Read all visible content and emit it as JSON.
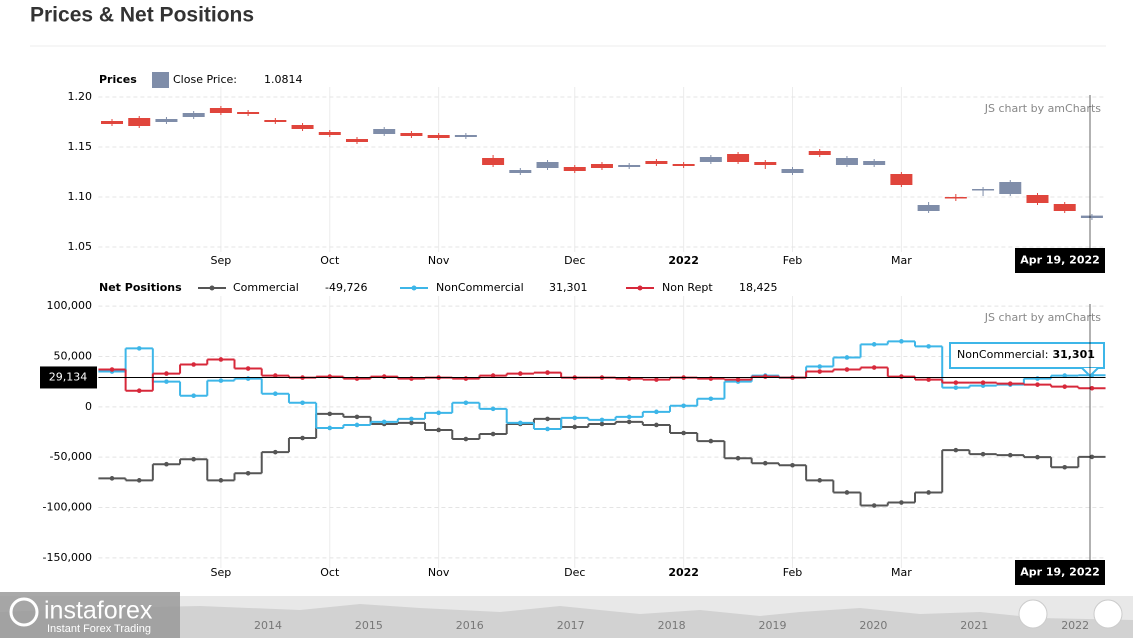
{
  "title": "Prices & Net Positions",
  "chart_data": [
    {
      "type": "candlestick",
      "title": "Prices",
      "series_name": "Close Price:",
      "cursor_value_label": "1.0814",
      "color_up": "#7f8da9",
      "color_down": "#e0453c",
      "categories": [
        null,
        null,
        null,
        null,
        "Sep",
        null,
        null,
        null,
        "Oct",
        null,
        null,
        null,
        "Nov",
        null,
        null,
        null,
        null,
        "Dec",
        null,
        null,
        null,
        "2022",
        null,
        null,
        null,
        "Feb",
        null,
        null,
        null,
        "Mar",
        null,
        null,
        null,
        null,
        null,
        null,
        null
      ],
      "open": [
        1.176,
        1.179,
        1.175,
        1.18,
        1.189,
        1.185,
        1.177,
        1.172,
        1.165,
        1.158,
        1.163,
        1.164,
        1.162,
        1.16,
        1.139,
        1.124,
        1.129,
        1.13,
        1.133,
        1.13,
        1.136,
        1.133,
        1.135,
        1.143,
        1.135,
        1.124,
        1.146,
        1.132,
        1.132,
        1.123,
        1.086,
        1.1,
        1.107,
        1.103,
        1.102,
        1.093,
        1.079
      ],
      "high": [
        1.178,
        1.181,
        1.18,
        1.186,
        1.191,
        1.187,
        1.179,
        1.174,
        1.167,
        1.16,
        1.17,
        1.166,
        1.164,
        1.164,
        1.142,
        1.129,
        1.137,
        1.132,
        1.135,
        1.134,
        1.138,
        1.135,
        1.142,
        1.145,
        1.137,
        1.13,
        1.148,
        1.141,
        1.138,
        1.125,
        1.095,
        1.103,
        1.11,
        1.117,
        1.104,
        1.095,
        1.083
      ],
      "low": [
        1.171,
        1.169,
        1.173,
        1.178,
        1.182,
        1.181,
        1.173,
        1.166,
        1.16,
        1.153,
        1.161,
        1.159,
        1.157,
        1.158,
        1.13,
        1.122,
        1.127,
        1.124,
        1.127,
        1.128,
        1.131,
        1.129,
        1.133,
        1.133,
        1.128,
        1.122,
        1.14,
        1.13,
        1.13,
        1.11,
        1.084,
        1.096,
        1.101,
        1.101,
        1.092,
        1.084,
        1.077
      ],
      "close": [
        1.173,
        1.171,
        1.178,
        1.184,
        1.184,
        1.183,
        1.175,
        1.168,
        1.162,
        1.155,
        1.168,
        1.161,
        1.159,
        1.162,
        1.132,
        1.127,
        1.135,
        1.126,
        1.129,
        1.132,
        1.133,
        1.131,
        1.14,
        1.135,
        1.132,
        1.128,
        1.142,
        1.139,
        1.136,
        1.112,
        1.092,
        1.099,
        1.108,
        1.115,
        1.094,
        1.086,
        1.0814
      ],
      "ylim": [
        1.045,
        1.21
      ],
      "yticks": [
        1.05,
        {
          "value": 1.1,
          "label": "1.10"
        },
        1.15,
        {
          "value": 1.2,
          "label": "1.20"
        }
      ],
      "grid": true,
      "credit": "JS chart by amCharts",
      "cursor_date": "Apr 19, 2022"
    },
    {
      "type": "step",
      "title": "Net Positions",
      "categories": [
        null,
        null,
        null,
        null,
        "Sep",
        null,
        null,
        null,
        "Oct",
        null,
        null,
        null,
        "Nov",
        null,
        null,
        null,
        null,
        "Dec",
        null,
        null,
        null,
        "2022",
        null,
        null,
        null,
        "Feb",
        null,
        null,
        null,
        "Mar",
        null,
        null,
        null,
        null,
        null,
        null,
        null
      ],
      "series": [
        {
          "name": "Commercial",
          "color": "#555555",
          "cursor_value_label": "-49,726",
          "values": [
            -71000,
            -73000,
            -57000,
            -52000,
            -73000,
            -66000,
            -45000,
            -31000,
            -7000,
            -10000,
            -17000,
            -16000,
            -23000,
            -32000,
            -27000,
            -17000,
            -12000,
            -20000,
            -17000,
            -15000,
            -18000,
            -26000,
            -34000,
            -51000,
            -56000,
            -58000,
            -73000,
            -85000,
            -98000,
            -95000,
            -85000,
            -43000,
            -47000,
            -48000,
            -50000,
            -60000,
            -49726
          ]
        },
        {
          "name": "NonCommercial",
          "color": "#3db6e8",
          "cursor_value_label": "31,301",
          "values": [
            35000,
            58000,
            25000,
            11000,
            26000,
            28000,
            13000,
            4000,
            -21000,
            -18000,
            -15000,
            -12000,
            -6000,
            4000,
            -2000,
            -16000,
            -22000,
            -11000,
            -13000,
            -10000,
            -5000,
            1000,
            8000,
            25000,
            31000,
            29000,
            40000,
            49000,
            62000,
            65000,
            60000,
            19000,
            21000,
            22000,
            28000,
            31000,
            31301
          ]
        },
        {
          "name": "Non Rept",
          "color": "#d7283a",
          "cursor_value_label": "18,425",
          "values": [
            37000,
            16000,
            33000,
            42000,
            47000,
            38000,
            31000,
            29000,
            30000,
            28000,
            30000,
            28000,
            29000,
            28000,
            31000,
            33000,
            34000,
            29000,
            29000,
            28000,
            27000,
            29000,
            28000,
            27000,
            30000,
            29000,
            35000,
            37000,
            39000,
            30000,
            27000,
            24000,
            24000,
            23000,
            22000,
            20000,
            18425
          ]
        }
      ],
      "ylim": [
        -160000,
        110000
      ],
      "yticks": [
        {
          "value": -150000,
          "label": "-150,000"
        },
        {
          "value": -100000,
          "label": "-100,000"
        },
        {
          "value": -50000,
          "label": "-50,000"
        },
        0,
        {
          "value": 50000,
          "label": "50,000"
        },
        {
          "value": 100000,
          "label": "100,000"
        }
      ],
      "grid": true,
      "credit": "JS chart by amCharts",
      "cursor_date": "Apr 19, 2022",
      "cursor_y": {
        "value": 29134,
        "label": "29,134"
      },
      "tooltip_label": "NonCommercial:"
    }
  ],
  "navigator": {
    "years": [
      "2014",
      "2015",
      "2016",
      "2017",
      "2018",
      "2019",
      "2020",
      "2021",
      "2022"
    ]
  },
  "logo": {
    "name": "instaforex",
    "tagline": "Instant Forex Trading"
  }
}
